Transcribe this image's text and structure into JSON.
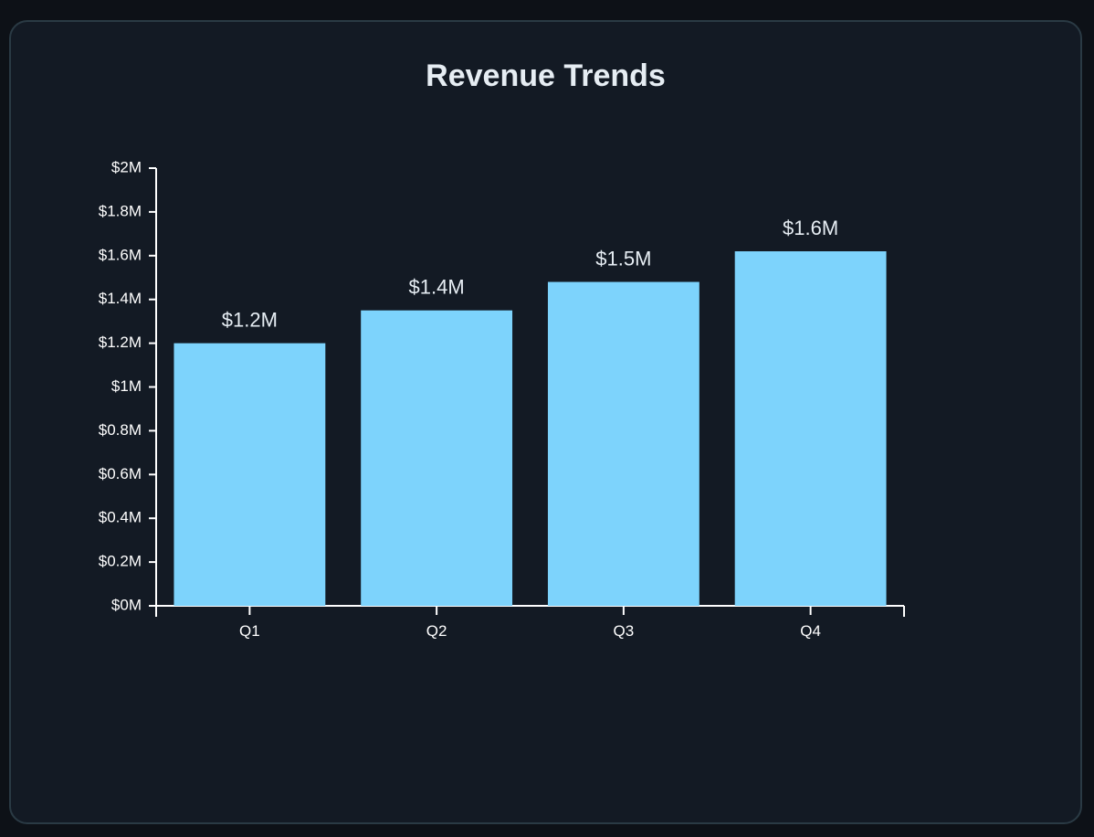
{
  "chart_data": {
    "type": "bar",
    "title": "Revenue Trends",
    "categories": [
      "Q1",
      "Q2",
      "Q3",
      "Q4"
    ],
    "values": [
      1.2,
      1.35,
      1.48,
      1.62
    ],
    "data_labels": [
      "$1.2M",
      "$1.4M",
      "$1.5M",
      "$1.6M"
    ],
    "ylim": [
      0,
      2
    ],
    "yticks": [
      0,
      0.2,
      0.4,
      0.6,
      0.8,
      1,
      1.2,
      1.4,
      1.6,
      1.8,
      2
    ],
    "ytick_labels": [
      "$0M",
      "$0.2M",
      "$0.4M",
      "$0.6M",
      "$0.8M",
      "$1M",
      "$1.2M",
      "$1.4M",
      "$1.6M",
      "$1.8M",
      "$2M"
    ],
    "xlabel": "",
    "ylabel": "",
    "grid": false,
    "bar_color": "#7dd3fc"
  },
  "colors": {
    "page_background": "#0d1117",
    "card_background": "#131a24",
    "card_border": "#2a3a44",
    "axis": "#ffffff",
    "text": "#e6edf3"
  }
}
